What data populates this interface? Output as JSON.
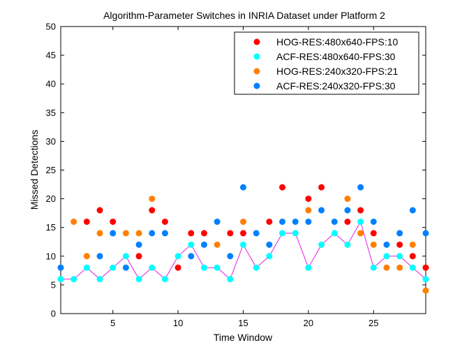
{
  "chart_data": {
    "type": "scatter",
    "title": "Algorithm-Parameter Switches in INRIA Dataset under Platform 2",
    "xlabel": "Time Window",
    "ylabel": "Missed Detections",
    "xlim": [
      1,
      29
    ],
    "ylim": [
      0,
      50
    ],
    "xticks": [
      5,
      10,
      15,
      20,
      25
    ],
    "yticks": [
      0,
      5,
      10,
      15,
      20,
      25,
      30,
      35,
      40,
      45,
      50
    ],
    "grid": false,
    "legend_position": "top-right",
    "series": [
      {
        "name": "HOG-RES:480x640-FPS:10",
        "color": "#ff0000",
        "x": [
          3,
          4,
          5,
          7,
          8,
          9,
          10,
          11,
          12,
          14,
          15,
          17,
          18,
          20,
          21,
          23,
          24,
          25,
          27,
          28,
          29
        ],
        "y": [
          16,
          18,
          16,
          10,
          18,
          16,
          8,
          14,
          14,
          14,
          14,
          16,
          22,
          20,
          22,
          16,
          18,
          14,
          12,
          10,
          8
        ]
      },
      {
        "name": "ACF-RES:480x640-FPS:30",
        "color": "#00ffff",
        "x": [
          1,
          2,
          3,
          4,
          5,
          6,
          7,
          8,
          9,
          10,
          11,
          12,
          13,
          14,
          15,
          16,
          17,
          18,
          19,
          20,
          21,
          22,
          23,
          24,
          25,
          26,
          27,
          28,
          29
        ],
        "y": [
          6,
          6,
          8,
          6,
          8,
          10,
          6,
          8,
          6,
          10,
          12,
          8,
          8,
          6,
          12,
          8,
          10,
          14,
          14,
          8,
          12,
          14,
          12,
          16,
          8,
          10,
          10,
          8,
          6
        ]
      },
      {
        "name": "HOG-RES:240x320-FPS:21",
        "color": "#ff8000",
        "x": [
          2,
          3,
          4,
          6,
          7,
          8,
          13,
          15,
          20,
          23,
          24,
          25,
          26,
          27,
          28,
          29
        ],
        "y": [
          16,
          10,
          14,
          14,
          14,
          20,
          12,
          16,
          18,
          20,
          14,
          12,
          8,
          8,
          12,
          4
        ]
      },
      {
        "name": "ACF-RES:240x320-FPS:30",
        "color": "#0080ff",
        "x": [
          1,
          4,
          5,
          6,
          7,
          8,
          9,
          11,
          12,
          13,
          14,
          15,
          16,
          17,
          18,
          19,
          20,
          21,
          22,
          23,
          24,
          25,
          26,
          27,
          28,
          29
        ],
        "y": [
          8,
          10,
          14,
          8,
          12,
          14,
          14,
          10,
          12,
          16,
          10,
          22,
          14,
          12,
          16,
          16,
          16,
          18,
          16,
          18,
          22,
          16,
          12,
          14,
          18,
          14
        ]
      }
    ],
    "switch_line": {
      "color": "#e020e0",
      "x": [
        1,
        2,
        3,
        4,
        5,
        6,
        7,
        8,
        9,
        10,
        11,
        12,
        13,
        14,
        15,
        16,
        17,
        18,
        19,
        20,
        21,
        22,
        23,
        24,
        25,
        26,
        27,
        28,
        29
      ],
      "y": [
        6,
        6,
        8,
        6,
        8,
        10,
        6,
        8,
        6,
        10,
        12,
        8,
        8,
        6,
        12,
        8,
        10,
        14,
        14,
        8,
        12,
        14,
        12,
        16,
        8,
        10,
        10,
        8,
        6
      ]
    }
  }
}
